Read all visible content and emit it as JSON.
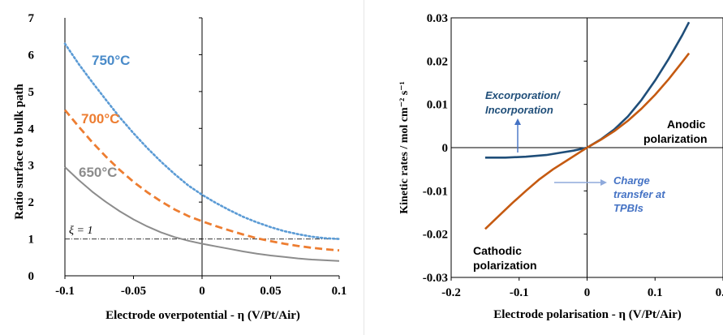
{
  "chart_data": [
    {
      "type": "line",
      "xlabel": "Electrode overpotential - η (V/Pt/Air)",
      "ylabel": "Ratio surface to bulk path",
      "xlim": [
        -0.1,
        0.1
      ],
      "ylim": [
        0,
        7
      ],
      "xticks": [
        -0.1,
        -0.05,
        0,
        0.05,
        0.1
      ],
      "xtick_labels": [
        "-0.1",
        "-0.05",
        "0",
        "0.05",
        "0.1"
      ],
      "yticks": [
        0,
        1,
        2,
        3,
        4,
        5,
        6,
        7
      ],
      "ytick_labels": [
        "0",
        "1",
        "2",
        "3",
        "4",
        "5",
        "6",
        "7"
      ],
      "grid": false,
      "reference_line": {
        "y": 1,
        "label": "ξ = 1",
        "color": "#333333"
      },
      "series": [
        {
          "name": "750°C",
          "color": "#5b9bd5",
          "style": "dotted",
          "x": [
            -0.1,
            -0.09,
            -0.08,
            -0.07,
            -0.06,
            -0.05,
            -0.04,
            -0.03,
            -0.02,
            -0.01,
            0,
            0.01,
            0.02,
            0.03,
            0.04,
            0.05,
            0.06,
            0.07,
            0.08,
            0.09,
            0.1
          ],
          "y": [
            6.3,
            5.75,
            5.25,
            4.77,
            4.3,
            3.87,
            3.47,
            3.1,
            2.76,
            2.45,
            2.2,
            1.98,
            1.78,
            1.6,
            1.45,
            1.32,
            1.21,
            1.13,
            1.06,
            1.02,
            1.0
          ]
        },
        {
          "name": "700°C",
          "color": "#ed7d31",
          "style": "dashed",
          "x": [
            -0.1,
            -0.09,
            -0.08,
            -0.07,
            -0.06,
            -0.05,
            -0.04,
            -0.03,
            -0.02,
            -0.01,
            0,
            0.01,
            0.02,
            0.03,
            0.04,
            0.05,
            0.06,
            0.07,
            0.08,
            0.09,
            0.1
          ],
          "y": [
            4.5,
            4.05,
            3.62,
            3.23,
            2.87,
            2.55,
            2.27,
            2.02,
            1.8,
            1.62,
            1.48,
            1.35,
            1.23,
            1.12,
            1.02,
            0.94,
            0.87,
            0.81,
            0.76,
            0.72,
            0.69
          ]
        },
        {
          "name": "650°C",
          "color": "#8c8c8c",
          "style": "solid",
          "x": [
            -0.1,
            -0.09,
            -0.08,
            -0.07,
            -0.06,
            -0.05,
            -0.04,
            -0.03,
            -0.02,
            -0.01,
            0,
            0.01,
            0.02,
            0.03,
            0.04,
            0.05,
            0.06,
            0.07,
            0.08,
            0.09,
            0.1
          ],
          "y": [
            2.95,
            2.6,
            2.28,
            2.0,
            1.75,
            1.53,
            1.34,
            1.18,
            1.05,
            0.95,
            0.87,
            0.8,
            0.73,
            0.66,
            0.6,
            0.55,
            0.51,
            0.47,
            0.44,
            0.42,
            0.4
          ]
        }
      ]
    },
    {
      "type": "line",
      "xlabel": "Electrode polarisation - η (V/Pt/Air)",
      "ylabel": "Kinetic rates / mol cm⁻² s⁻¹",
      "xlim": [
        -0.2,
        0.2
      ],
      "ylim": [
        -0.03,
        0.03
      ],
      "xticks": [
        -0.2,
        -0.1,
        0,
        0.1,
        0.2
      ],
      "xtick_labels": [
        "-0.2",
        "-0.1",
        "0",
        "0.1",
        "0.2"
      ],
      "yticks": [
        -0.03,
        -0.02,
        -0.01,
        0,
        0.01,
        0.02,
        0.03
      ],
      "ytick_labels": [
        "-0.03",
        "-0.02",
        "-0.01",
        "0",
        "0.01",
        "0.02",
        "0.03"
      ],
      "grid": false,
      "annotations": [
        {
          "text_lines": [
            "Excorporation/",
            "Incorporation"
          ],
          "color": "#1f4e79"
        },
        {
          "text_lines": [
            "Charge",
            "transfer at",
            "TPBIs"
          ],
          "color": "#4472c4"
        },
        {
          "text_lines": [
            "Anodic",
            "polarization"
          ],
          "color": "#000000"
        },
        {
          "text_lines": [
            "Cathodic",
            "polarization"
          ],
          "color": "#000000"
        }
      ],
      "series": [
        {
          "name": "",
          "color": "#1f4e79",
          "style": "solid",
          "x": [
            -0.15,
            -0.12,
            -0.09,
            -0.06,
            -0.04,
            -0.02,
            0,
            0.02,
            0.04,
            0.06,
            0.08,
            0.1,
            0.12,
            0.14,
            0.15
          ],
          "y": [
            -0.0023,
            -0.0023,
            -0.0021,
            -0.0017,
            -0.0012,
            -0.0007,
            0,
            0.0019,
            0.0042,
            0.0072,
            0.011,
            0.0155,
            0.0205,
            0.026,
            0.029
          ]
        },
        {
          "name": "",
          "color": "#c55a11",
          "style": "solid",
          "x": [
            -0.15,
            -0.13,
            -0.11,
            -0.09,
            -0.07,
            -0.05,
            -0.03,
            -0.01,
            0,
            0.02,
            0.04,
            0.06,
            0.08,
            0.1,
            0.12,
            0.14,
            0.15
          ],
          "y": [
            -0.0188,
            -0.0158,
            -0.0128,
            -0.01,
            -0.0073,
            -0.005,
            -0.003,
            -0.001,
            0,
            0.0018,
            0.0038,
            0.0062,
            0.009,
            0.0122,
            0.0158,
            0.0198,
            0.0218
          ]
        }
      ]
    }
  ],
  "left_labels": {
    "t750": "750°C",
    "t700": "700°C",
    "t650": "650°C",
    "xi": "ξ = 1"
  }
}
